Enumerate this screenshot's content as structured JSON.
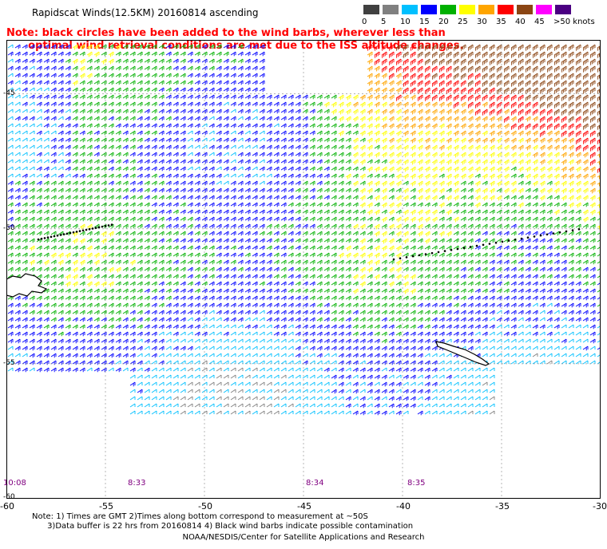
{
  "title": "Rapidscat Winds(12.5KM) 20160814 ascending",
  "note_line1": "Note: black circles have been added to the wind barbs, wherever less than",
  "note_line2": "      optimal wind retrieval conditions are met due to the ISS altitude changes.",
  "colorbar": {
    "labels": [
      "0",
      "5",
      "10",
      "15",
      "20",
      "25",
      "30",
      "35",
      "40",
      "45",
      ">50 knots"
    ],
    "colors": [
      "#404040",
      "#808080",
      "#00c0ff",
      "#0000ff",
      "#00b000",
      "#ffff00",
      "#ffa500",
      "#ff0000",
      "#8b4513",
      "#ff00ff",
      "#4b0082"
    ]
  },
  "longitude_labels": [
    "-60",
    "-55",
    "-50",
    "-45",
    "-40",
    "-35",
    "-30"
  ],
  "latitude_labels": [
    "-45",
    "-50",
    "-55",
    "-60"
  ],
  "time_labels": [
    "10:08",
    "8:33",
    "8:34",
    "8:35"
  ],
  "footnote_line1": "Note: 1) Times are GMT 2)Times along bottom correspond to measurement at ~50S",
  "footnote_line2": "      3)Data buffer is 22 hrs from 20160814 4) Black wind barbs indicate possible contamination",
  "credit": "NOAA/NESDIS/Center for Satellite Applications and Research",
  "chart_data": {
    "type": "map",
    "lon_range": [
      -60,
      -30
    ],
    "lat_range": [
      -60,
      -43
    ],
    "speed_bins_knots": [
      0,
      5,
      10,
      15,
      20,
      25,
      30,
      35,
      40,
      45,
      50
    ],
    "grid": true
  }
}
